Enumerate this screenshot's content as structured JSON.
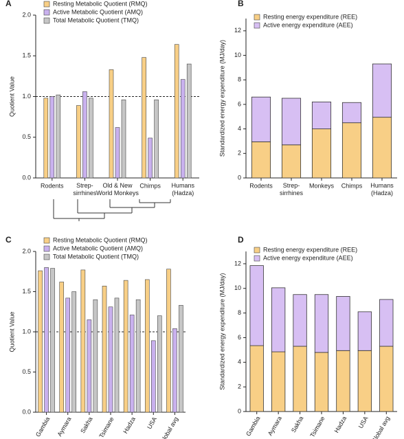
{
  "chart_data": [
    {
      "type": "grouped_bar",
      "panel_label": "A",
      "ylabel": "Quotient Value",
      "categories": [
        "Rodents",
        "Strep-\nsirrhines",
        "Old & New\nWorld Monkeys",
        "Chimps",
        "Humans\n(Hadza)"
      ],
      "series": [
        {
          "name": "Resting Metabolic Quotient (RMQ)",
          "color": "#f8cf86",
          "values": [
            0.98,
            0.89,
            1.33,
            1.48,
            1.64
          ]
        },
        {
          "name": "Active Metabolic Quotient (AMQ)",
          "color": "#c9b1ee",
          "values": [
            1.0,
            1.06,
            0.62,
            0.49,
            1.21
          ]
        },
        {
          "name": "Total Metabolic Quotient (TMQ)",
          "color": "#c6c6c6",
          "values": [
            1.02,
            0.98,
            0.96,
            0.96,
            1.4
          ]
        }
      ],
      "ylim": [
        0,
        2
      ],
      "yticks": [
        {
          "value": 0,
          "label": "0.0"
        },
        0.5,
        {
          "value": 1,
          "label": "1.0"
        },
        1.5,
        {
          "value": 2,
          "label": "2.0"
        }
      ],
      "reference_line": 1,
      "legend": "upper left"
    },
    {
      "type": "stacked_bar",
      "panel_label": "B",
      "ylabel": "Standardized energy expenditure (MJ/day)",
      "categories": [
        "Rodents",
        "Strep-\nsirrhines",
        "Monkeys",
        "Chimps",
        "Humans\n(Hadza)"
      ],
      "series": [
        {
          "name": "Resting energy expenditure (REE)",
          "color": "#f8cf86",
          "values": [
            2.95,
            2.7,
            4.0,
            4.5,
            4.95
          ]
        },
        {
          "name": "Active energy expenditure (AEE)",
          "color": "#d7bff3",
          "values": [
            3.65,
            3.8,
            2.2,
            1.65,
            4.35
          ]
        }
      ],
      "ylim": [
        0,
        13
      ],
      "yticks": [
        0,
        2,
        4,
        6,
        8,
        10,
        12
      ],
      "legend": "upper left"
    },
    {
      "type": "grouped_bar",
      "panel_label": "C",
      "ylabel": "Quotient Value",
      "categories": [
        "Gambia",
        "Aymara",
        "Sakha",
        "Tsimane",
        "Hadza",
        "USA",
        "Global avg"
      ],
      "series": [
        {
          "name": "Resting Metabolic Quotient (RMQ)",
          "color": "#f8cf86",
          "values": [
            1.76,
            1.62,
            1.77,
            1.57,
            1.64,
            1.65,
            1.78
          ]
        },
        {
          "name": "Active Metabolic Quotient (AMQ)",
          "color": "#c9b1ee",
          "values": [
            1.8,
            1.42,
            1.15,
            1.31,
            1.21,
            0.89,
            1.04
          ]
        },
        {
          "name": "Total Metabolic Quotient (TMQ)",
          "color": "#c6c6c6",
          "values": [
            1.79,
            1.5,
            1.4,
            1.42,
            1.4,
            1.2,
            1.33
          ]
        }
      ],
      "ylim": [
        0,
        2
      ],
      "yticks": [
        {
          "value": 0,
          "label": "0.0"
        },
        0.5,
        {
          "value": 1,
          "label": "1.0"
        },
        1.5,
        {
          "value": 2,
          "label": "2.0"
        }
      ],
      "reference_line": 1,
      "legend": "upper left"
    },
    {
      "type": "stacked_bar",
      "panel_label": "D",
      "ylabel": "Standardized energy expenditure (MJ/day)",
      "categories": [
        "Gambia",
        "Aymara",
        "Sakha",
        "Tsimane",
        "Hadza",
        "USA",
        "Global avg"
      ],
      "series": [
        {
          "name": "Resting energy expenditure (REE)",
          "color": "#f8cf86",
          "values": [
            5.35,
            4.85,
            5.3,
            4.8,
            4.95,
            4.95,
            5.3
          ]
        },
        {
          "name": "Active energy expenditure (AEE)",
          "color": "#d7bff3",
          "values": [
            6.5,
            5.2,
            4.2,
            4.7,
            4.4,
            3.15,
            3.8
          ]
        }
      ],
      "ylim": [
        0,
        13
      ],
      "yticks": [
        0,
        2,
        4,
        6,
        8,
        10,
        12
      ],
      "legend": "upper left"
    }
  ]
}
